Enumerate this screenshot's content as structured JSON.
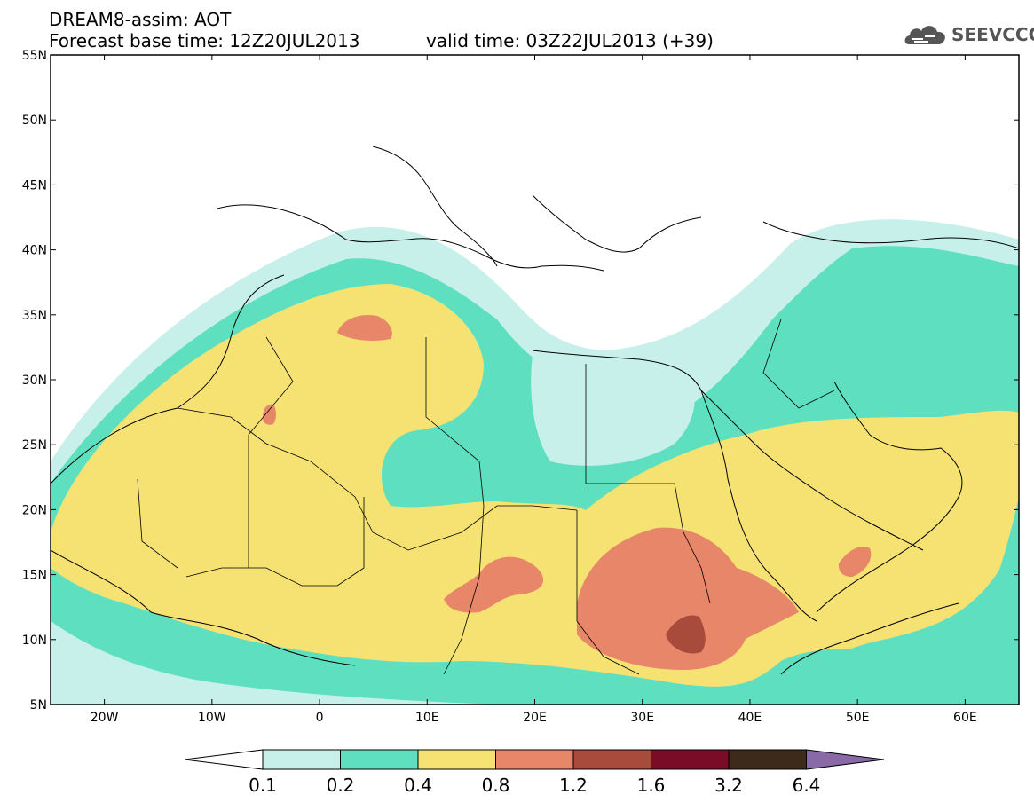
{
  "title": {
    "line1": "DREAM8-assim: AOT",
    "base_time": "Forecast base time: 12Z20JUL2013",
    "valid_time": "valid time: 03Z22JUL2013 (+39)"
  },
  "logo": {
    "text": "SEEVCCC",
    "icon": "cloud-icon"
  },
  "map": {
    "lat_labels": [
      "55N",
      "50N",
      "45N",
      "40N",
      "35N",
      "30N",
      "25N",
      "20N",
      "15N",
      "10N",
      "5N"
    ],
    "lon_labels": [
      "20W",
      "10W",
      "0",
      "10E",
      "20E",
      "30E",
      "40E",
      "50E",
      "60E"
    ],
    "lat_range": [
      5,
      55
    ],
    "lon_range": [
      -25,
      65
    ],
    "lat_ticks": [
      55,
      50,
      45,
      40,
      35,
      30,
      25,
      20,
      15,
      10,
      5
    ],
    "lon_ticks": [
      -20,
      -10,
      0,
      10,
      20,
      30,
      40,
      50,
      60
    ]
  },
  "colorbar": {
    "levels": [
      "0.1",
      "0.2",
      "0.4",
      "0.8",
      "1.2",
      "1.6",
      "3.2",
      "6.4"
    ],
    "colors": {
      "below": "#ffffff",
      "c1": "#c8f0ea",
      "c2": "#5ee0c0",
      "c3": "#f5e273",
      "c4": "#e8866a",
      "c5": "#a84a3c",
      "c6": "#7a0c28",
      "c7": "#3e2a1a",
      "above": "#8a6aa6"
    }
  }
}
